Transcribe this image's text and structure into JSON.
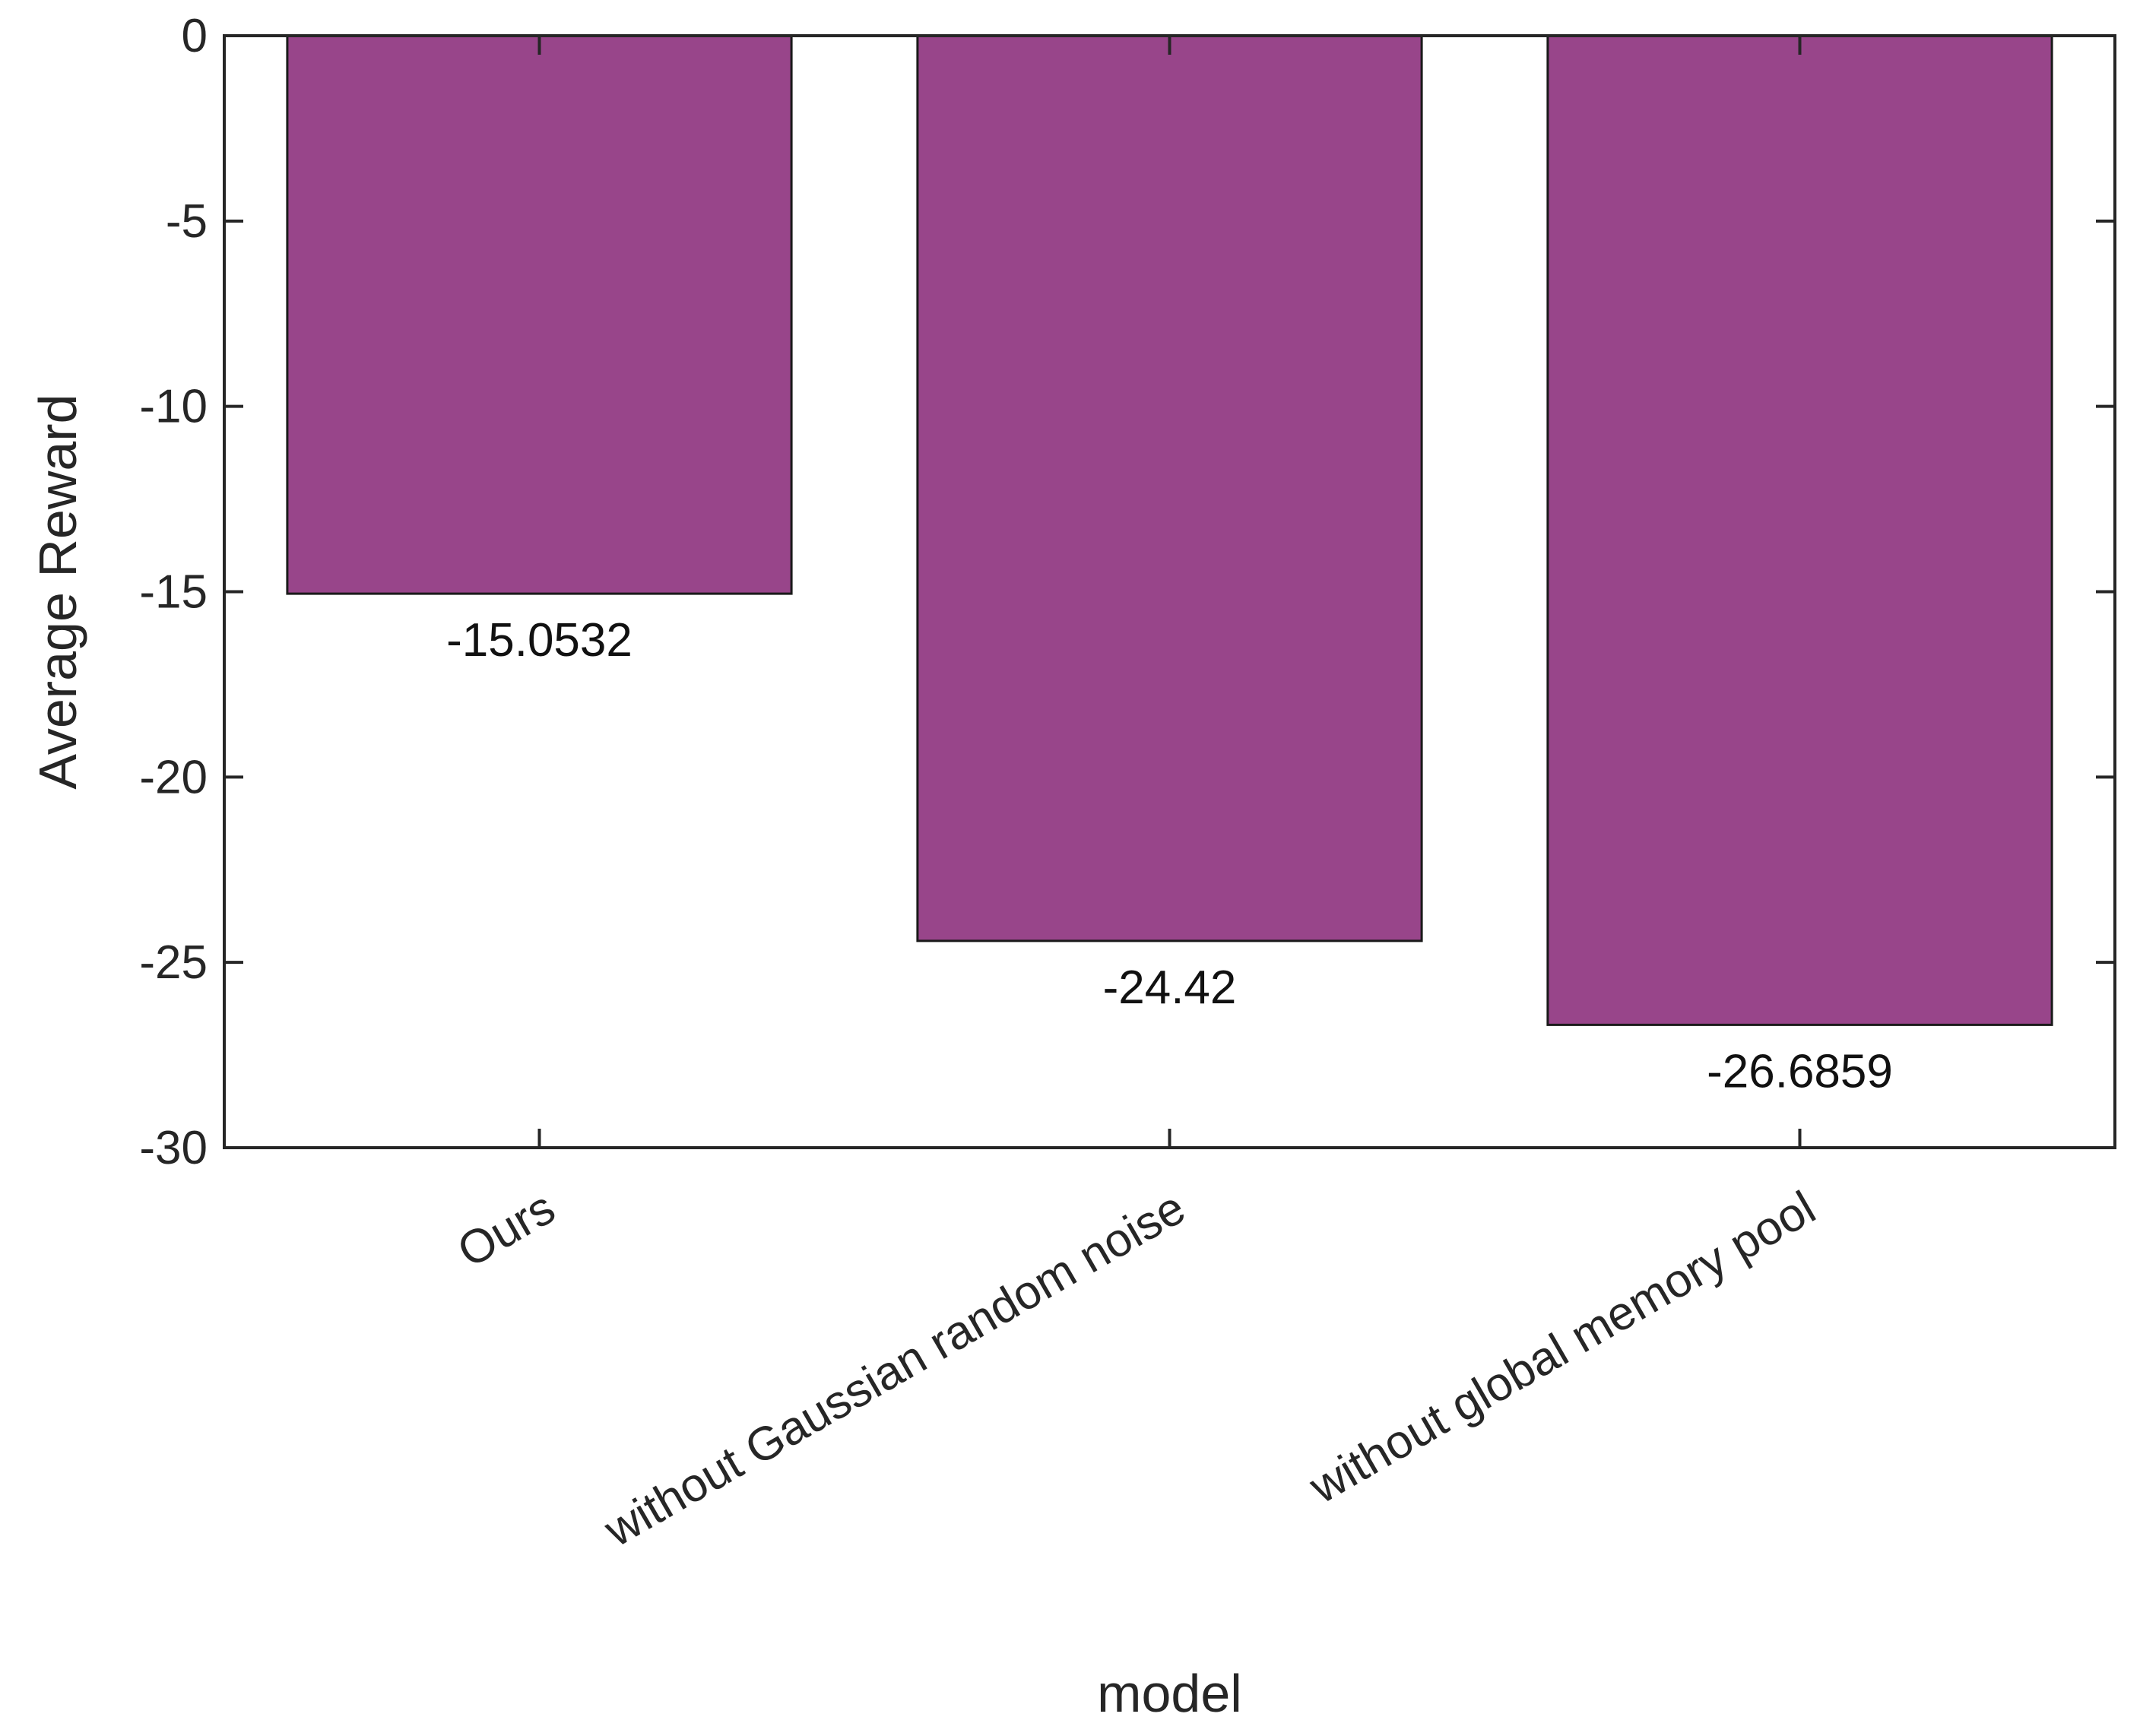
{
  "chart_data": {
    "type": "bar",
    "title": "",
    "xlabel": "model",
    "ylabel": "Average Reward",
    "categories": [
      "Ours",
      "without Gaussian random noise",
      "without global memory pool"
    ],
    "values": [
      -15.0532,
      -24.42,
      -26.6859
    ],
    "data_labels": [
      "-15.0532",
      "-24.42",
      "-26.6859"
    ],
    "ylim": [
      -30,
      0
    ],
    "yticks": [
      0,
      -5,
      -10,
      -15,
      -20,
      -25,
      -30
    ],
    "ytick_labels": [
      "0",
      "-5",
      "-10",
      "-15",
      "-20",
      "-25",
      "-30"
    ],
    "grid": false,
    "legend": "none",
    "bar_color": "#98458a",
    "edge_color": "#1a1a1a",
    "axis_color": "#262626"
  }
}
